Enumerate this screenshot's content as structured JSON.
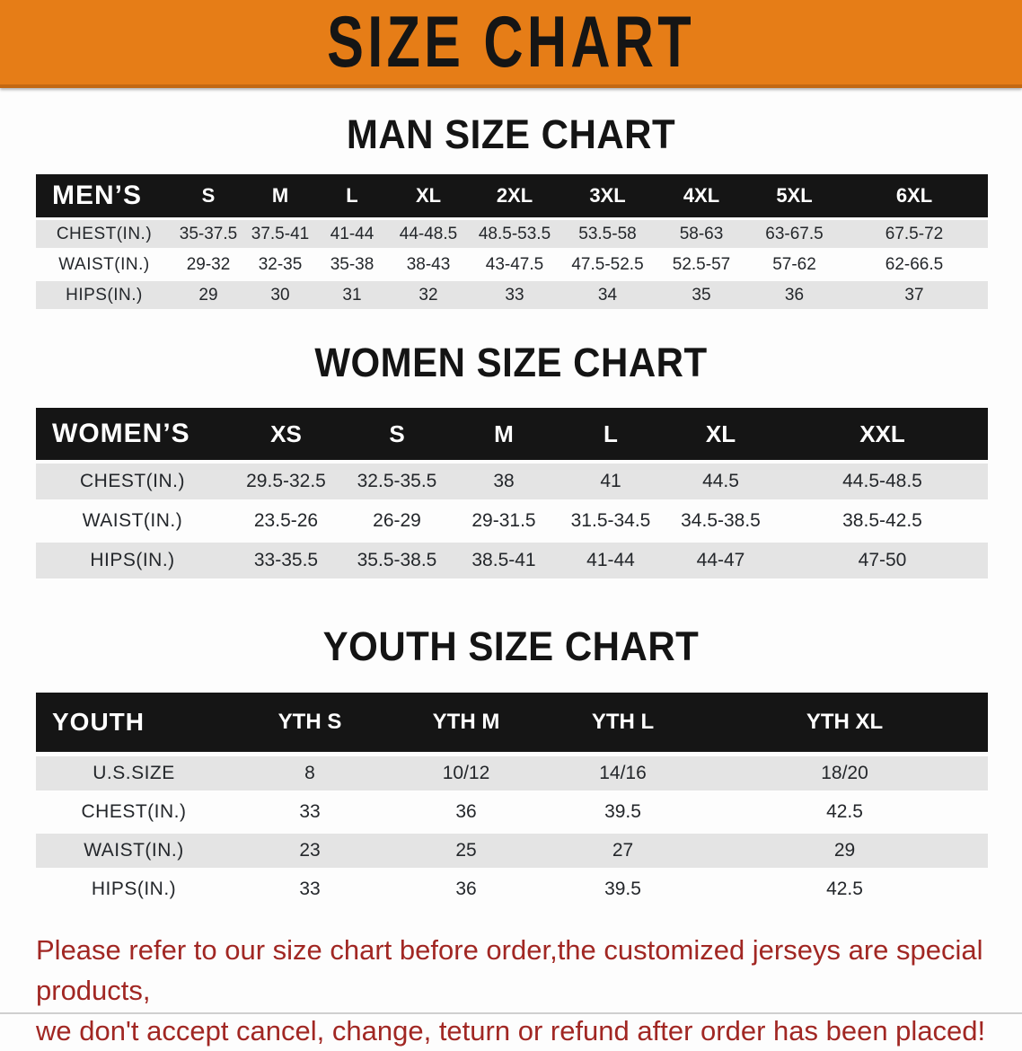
{
  "banner": {
    "title": "SIZE CHART"
  },
  "sections": {
    "men": {
      "heading": "MAN SIZE CHART",
      "header_label": "MEN’S",
      "columns": [
        "S",
        "M",
        "L",
        "XL",
        "2XL",
        "3XL",
        "4XL",
        "5XL",
        "6XL"
      ],
      "rows": [
        {
          "label": "CHEST(IN.)",
          "values": [
            "35-37.5",
            "37.5-41",
            "41-44",
            "44-48.5",
            "48.5-53.5",
            "53.5-58",
            "58-63",
            "63-67.5",
            "67.5-72"
          ]
        },
        {
          "label": "WAIST(IN.)",
          "values": [
            "29-32",
            "32-35",
            "35-38",
            "38-43",
            "43-47.5",
            "47.5-52.5",
            "52.5-57",
            "57-62",
            "62-66.5"
          ]
        },
        {
          "label": "HIPS(IN.)",
          "values": [
            "29",
            "30",
            "31",
            "32",
            "33",
            "34",
            "35",
            "36",
            "37"
          ]
        }
      ]
    },
    "women": {
      "heading": "WOMEN SIZE CHART",
      "header_label": "WOMEN’S",
      "columns": [
        "XS",
        "S",
        "M",
        "L",
        "XL",
        "XXL"
      ],
      "rows": [
        {
          "label": "CHEST(IN.)",
          "values": [
            "29.5-32.5",
            "32.5-35.5",
            "38",
            "41",
            "44.5",
            "44.5-48.5"
          ]
        },
        {
          "label": "WAIST(IN.)",
          "values": [
            "23.5-26",
            "26-29",
            "29-31.5",
            "31.5-34.5",
            "34.5-38.5",
            "38.5-42.5"
          ]
        },
        {
          "label": "HIPS(IN.)",
          "values": [
            "33-35.5",
            "35.5-38.5",
            "38.5-41",
            "41-44",
            "44-47",
            "47-50"
          ]
        }
      ]
    },
    "youth": {
      "heading": "YOUTH SIZE CHART",
      "header_label": "YOUTH",
      "columns": [
        "YTH S",
        "YTH M",
        "YTH L",
        "YTH XL"
      ],
      "rows": [
        {
          "label": "U.S.SIZE",
          "values": [
            "8",
            "10/12",
            "14/16",
            "18/20"
          ]
        },
        {
          "label": "CHEST(IN.)",
          "values": [
            "33",
            "36",
            "39.5",
            "42.5"
          ]
        },
        {
          "label": "WAIST(IN.)",
          "values": [
            "23",
            "25",
            "27",
            "29"
          ]
        },
        {
          "label": "HIPS(IN.)",
          "values": [
            "33",
            "36",
            "39.5",
            "42.5"
          ]
        }
      ]
    }
  },
  "disclaimer": {
    "line1": "Please refer to our size chart before order,the customized jerseys are special products,",
    "line2": "we don't accept cancel, change, teturn or refund after order has been placed!"
  },
  "colors": {
    "banner_bg": "#e67d17",
    "table_header_bg": "#151515",
    "row_shade": "#e4e4e4",
    "disclaimer_text": "#a12723"
  }
}
